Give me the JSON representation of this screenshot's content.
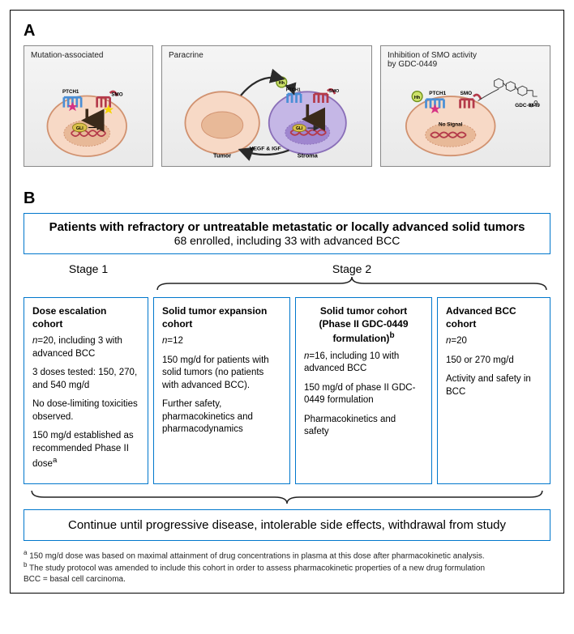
{
  "panelA": {
    "label": "A",
    "boxes": [
      {
        "title": "Mutation-associated",
        "labels": {
          "ptch1": "PTCH1",
          "smo": "SMO",
          "gli": "GLI"
        },
        "colors": {
          "cell_fill": "#f7d9c6",
          "cell_stroke": "#d19270",
          "nucleus": "#e8b998",
          "ptch": "#4a8fd6",
          "smo": "#b43a4a",
          "gli_fill": "#d9c04a",
          "star1": "#d63384",
          "star2": "#f5d400"
        }
      },
      {
        "title": "Paracrine",
        "labels": {
          "tumor": "Tumor",
          "stroma": "Stroma",
          "gli": "GLI",
          "hh": "Hh",
          "vegf": "VEGF & IGF",
          "ptch1": "PTCH1",
          "smo": "SMO"
        },
        "colors": {
          "tumor_fill": "#f7d9c6",
          "tumor_stroke": "#d19270",
          "stroma_fill": "#c5b7e6",
          "stroma_stroke": "#8a6fb8",
          "nucleus_t": "#e8b998",
          "nucleus_s": "#9f86cf",
          "hh_fill": "#cde26a",
          "hh_stroke": "#6f8f1a",
          "ptch": "#4a8fd6",
          "smo": "#b43a4a",
          "gli_fill": "#d9c04a",
          "arrow": "#2a2a2a"
        }
      },
      {
        "title": "Inhibition of SMO activity\nby GDC-0449",
        "labels": {
          "ptch1": "PTCH1",
          "smo": "SMO",
          "hh": "Hh",
          "nosig": "No Signal",
          "gdc": "GDC-0449"
        },
        "colors": {
          "cell_fill": "#f7d9c6",
          "cell_stroke": "#d19270",
          "nucleus": "#e8b998",
          "ptch": "#4a8fd6",
          "smo": "#b43a4a",
          "hh_fill": "#cde26a",
          "hh_stroke": "#6f8f1a",
          "star1": "#d63384",
          "struct": "#333"
        }
      }
    ]
  },
  "panelB": {
    "label": "B",
    "header": {
      "line1": "Patients with refractory or untreatable metastatic or locally advanced solid tumors",
      "line2": "68 enrolled, including 33 with advanced BCC"
    },
    "stages": {
      "s1": "Stage 1",
      "s2": "Stage 2"
    },
    "cohorts": [
      {
        "title": "Dose escalation cohort",
        "paras": [
          "<span class=\"italic\">n</span>=20, including 3 with advanced BCC",
          "3 doses tested: 150, 270, and 540 mg/d",
          "No dose-limiting toxicities observed.",
          "150 mg/d established as recommended Phase II dose<sup>a</sup>"
        ]
      },
      {
        "title": "Solid tumor expansion cohort",
        "paras": [
          "<span class=\"italic\">n</span>=12",
          "150 mg/d for patients with solid tumors (no patients with advanced BCC).",
          "Further safety, pharmacokinetics and pharmacodynamics"
        ]
      },
      {
        "title": "Solid tumor cohort (Phase II GDC-0449 formulation)<sup>b</sup>",
        "title_center": true,
        "paras": [
          "<span class=\"italic\">n</span>=16, including 10 with advanced BCC",
          "150 mg/d of phase II GDC-0449 formulation",
          "Pharmacokinetics and safety"
        ]
      },
      {
        "title": "Advanced BCC cohort",
        "paras": [
          "<span class=\"italic\">n</span>=20",
          "150 or 270 mg/d",
          "Activity and safety in BCC"
        ]
      }
    ],
    "continue": "Continue until progressive disease, intolerable side effects, withdrawal from study",
    "footnotes": [
      "<sup>a</sup> 150 mg/d dose was based on maximal attainment of drug concentrations in plasma at this dose after pharmacokinetic analysis.",
      "<sup>b</sup> The study protocol was amended to include this cohort in order to assess pharmacokinetic properties of a new drug formulation",
      "BCC = basal cell carcinoma."
    ],
    "colors": {
      "box_border": "#0077cc",
      "brace": "#222"
    }
  }
}
